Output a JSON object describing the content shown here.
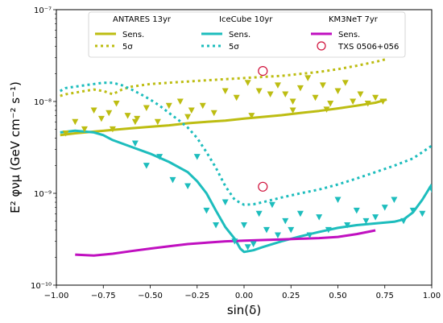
{
  "chart_data": {
    "type": "line",
    "xlabel": "sin(δ)",
    "ylabel": "E² φνμ (GeV cm⁻² s⁻¹)",
    "xlim": [
      -1.0,
      1.0
    ],
    "ylim": [
      1e-10,
      1e-07
    ],
    "yscale": "log",
    "x_ticks": [
      -1.0,
      -0.75,
      -0.5,
      -0.25,
      0.0,
      0.25,
      0.5,
      0.75,
      1.0
    ],
    "x_tick_labels": [
      "−1.00",
      "−0.75",
      "−0.50",
      "−0.25",
      "0.00",
      "0.25",
      "0.50",
      "0.75",
      "1.00"
    ],
    "y_ticks": [
      1e-10,
      1e-09,
      1e-08,
      1e-07
    ],
    "y_tick_labels": [
      "10⁻¹⁰",
      "10⁻⁹",
      "10⁻⁸",
      "10⁻⁷"
    ],
    "grid": false,
    "legend_placement": "top",
    "legend": {
      "groups": [
        {
          "title": "ANTARES 13yr",
          "entries": [
            {
              "label": "Sens.",
              "style": "solid"
            },
            {
              "label": "5σ",
              "style": "dotted"
            }
          ]
        },
        {
          "title": "IceCube 10yr",
          "entries": [
            {
              "label": "Sens.",
              "style": "solid"
            },
            {
              "label": "5σ",
              "style": "dotted"
            }
          ]
        },
        {
          "title": "KM3NeT 7yr",
          "entries": [
            {
              "label": "Sens.",
              "style": "solid"
            },
            {
              "label": "TXS 0506+056",
              "style": "circle"
            }
          ]
        }
      ]
    },
    "colors": {
      "antares": "#bdbd12",
      "icecube": "#1dbdbd",
      "km3net": "#c010c0",
      "txs": "#d0103a"
    },
    "series": [
      {
        "group": "ANTARES 13yr",
        "name": "Sens.",
        "style": "solid",
        "x": [
          -0.98,
          -0.9,
          -0.8,
          -0.7,
          -0.6,
          -0.5,
          -0.4,
          -0.3,
          -0.2,
          -0.1,
          0.0,
          0.1,
          0.2,
          0.3,
          0.4,
          0.5,
          0.6,
          0.7,
          0.76
        ],
        "y": [
          4.3e-09,
          4.5e-09,
          4.7e-09,
          4.9e-09,
          5.1e-09,
          5.3e-09,
          5.5e-09,
          5.8e-09,
          6e-09,
          6.2e-09,
          6.5e-09,
          6.8e-09,
          7.1e-09,
          7.5e-09,
          7.9e-09,
          8.4e-09,
          9e-09,
          9.7e-09,
          1.05e-08
        ]
      },
      {
        "group": "ANTARES 13yr",
        "name": "5σ",
        "style": "dotted",
        "x": [
          -0.98,
          -0.95,
          -0.9,
          -0.85,
          -0.8,
          -0.75,
          -0.7,
          -0.65,
          -0.6,
          -0.5,
          -0.4,
          -0.3,
          -0.2,
          -0.1,
          0.0,
          0.1,
          0.2,
          0.3,
          0.4,
          0.5,
          0.6,
          0.7,
          0.76
        ],
        "y": [
          1.15e-08,
          1.2e-08,
          1.25e-08,
          1.3e-08,
          1.35e-08,
          1.3e-08,
          1.2e-08,
          1.35e-08,
          1.45e-08,
          1.55e-08,
          1.6e-08,
          1.65e-08,
          1.7e-08,
          1.75e-08,
          1.8e-08,
          1.85e-08,
          1.9e-08,
          2e-08,
          2.1e-08,
          2.25e-08,
          2.45e-08,
          2.7e-08,
          2.9e-08
        ]
      },
      {
        "group": "IceCube 10yr",
        "name": "Sens.",
        "style": "solid",
        "x": [
          -0.98,
          -0.9,
          -0.8,
          -0.75,
          -0.7,
          -0.6,
          -0.5,
          -0.4,
          -0.3,
          -0.25,
          -0.2,
          -0.15,
          -0.1,
          -0.05,
          -0.02,
          0.0,
          0.05,
          0.1,
          0.2,
          0.3,
          0.4,
          0.5,
          0.6,
          0.7,
          0.8,
          0.85,
          0.9,
          0.95,
          1.0
        ],
        "y": [
          4.6e-09,
          4.8e-09,
          4.6e-09,
          4.3e-09,
          3.8e-09,
          3.2e-09,
          2.7e-09,
          2.2e-09,
          1.7e-09,
          1.35e-09,
          1e-09,
          6.5e-10,
          4.3e-10,
          3.2e-10,
          2.5e-10,
          2.3e-10,
          2.4e-10,
          2.6e-10,
          3e-10,
          3.4e-10,
          3.8e-10,
          4.2e-10,
          4.5e-10,
          4.7e-10,
          4.9e-10,
          5.2e-10,
          6.2e-10,
          8.5e-10,
          1.25e-09
        ]
      },
      {
        "group": "IceCube 10yr",
        "name": "5σ",
        "style": "dotted",
        "x": [
          -0.98,
          -0.95,
          -0.9,
          -0.85,
          -0.8,
          -0.75,
          -0.7,
          -0.65,
          -0.6,
          -0.55,
          -0.5,
          -0.45,
          -0.4,
          -0.35,
          -0.3,
          -0.25,
          -0.2,
          -0.15,
          -0.1,
          -0.05,
          0.0,
          0.05,
          0.1,
          0.2,
          0.3,
          0.4,
          0.5,
          0.6,
          0.7,
          0.8,
          0.9,
          0.95,
          1.0
        ],
        "y": [
          1.3e-08,
          1.4e-08,
          1.45e-08,
          1.5e-08,
          1.55e-08,
          1.6e-08,
          1.6e-08,
          1.5e-08,
          1.35e-08,
          1.2e-08,
          1.05e-08,
          9e-09,
          7.5e-09,
          6.3e-09,
          5.2e-09,
          4e-09,
          2.8e-09,
          1.9e-09,
          1.2e-09,
          8.5e-10,
          7.5e-10,
          7.6e-10,
          8e-10,
          9e-10,
          1e-09,
          1.1e-09,
          1.25e-09,
          1.45e-09,
          1.7e-09,
          2e-09,
          2.4e-09,
          2.8e-09,
          3.3e-09
        ]
      },
      {
        "group": "KM3NeT 7yr",
        "name": "Sens.",
        "style": "solid",
        "x": [
          -0.9,
          -0.8,
          -0.7,
          -0.6,
          -0.5,
          -0.4,
          -0.3,
          -0.2,
          -0.1,
          0.0,
          0.1,
          0.2,
          0.3,
          0.4,
          0.5,
          0.6,
          0.7
        ],
        "y": [
          2.15e-10,
          2.1e-10,
          2.2e-10,
          2.35e-10,
          2.5e-10,
          2.65e-10,
          2.8e-10,
          2.9e-10,
          3e-10,
          3.05e-10,
          3.1e-10,
          3.15e-10,
          3.2e-10,
          3.25e-10,
          3.35e-10,
          3.6e-10,
          3.95e-10
        ]
      }
    ],
    "upper_limit_markers": [
      {
        "group": "ANTARES 13yr",
        "marker": "down-triangle",
        "x": [
          -0.95,
          -0.9,
          -0.85,
          -0.8,
          -0.76,
          -0.72,
          -0.68,
          -0.62,
          -0.57,
          -0.52,
          -0.46,
          -0.4,
          -0.34,
          -0.28,
          -0.22,
          -0.16,
          -0.1,
          -0.04,
          0.02,
          0.08,
          0.14,
          0.18,
          0.22,
          0.26,
          0.3,
          0.34,
          0.38,
          0.42,
          0.46,
          0.5,
          0.54,
          0.58,
          0.62,
          0.66,
          0.7,
          0.74,
          -0.7,
          -0.58,
          -0.3,
          0.04,
          0.26,
          0.44
        ],
        "y": [
          4.5e-09,
          6e-09,
          5e-09,
          8e-09,
          6.5e-09,
          7.5e-09,
          9.5e-09,
          7e-09,
          6.5e-09,
          8.5e-09,
          6e-09,
          9e-09,
          1e-08,
          8e-09,
          9e-09,
          7.5e-09,
          1.3e-08,
          1.1e-08,
          1.6e-08,
          1.3e-08,
          1.2e-08,
          1.5e-08,
          1.2e-08,
          1e-08,
          1.4e-08,
          1.8e-08,
          1.1e-08,
          1.5e-08,
          9.5e-09,
          1.3e-08,
          1.6e-08,
          1e-08,
          1.2e-08,
          9.5e-09,
          1.1e-08,
          1e-08,
          5e-09,
          6e-09,
          6.8e-09,
          7e-09,
          8e-09,
          8.2e-09
        ]
      },
      {
        "group": "IceCube 10yr",
        "marker": "down-triangle",
        "x": [
          -0.58,
          -0.52,
          -0.45,
          -0.38,
          -0.3,
          -0.25,
          -0.2,
          -0.15,
          -0.1,
          -0.05,
          0.0,
          0.02,
          0.05,
          0.08,
          0.12,
          0.15,
          0.18,
          0.22,
          0.25,
          0.3,
          0.35,
          0.4,
          0.45,
          0.5,
          0.55,
          0.6,
          0.65,
          0.7,
          0.75,
          0.8,
          0.85,
          0.9,
          0.95,
          1.0
        ],
        "y": [
          3.5e-09,
          2e-09,
          2.5e-09,
          1.4e-09,
          1.2e-09,
          2.5e-09,
          6.5e-10,
          4.5e-10,
          8e-10,
          3e-10,
          4.5e-10,
          2.6e-10,
          2.8e-10,
          6e-10,
          4e-10,
          7.5e-10,
          3.5e-10,
          5e-10,
          4e-10,
          6e-10,
          3.5e-10,
          5.5e-10,
          4e-10,
          8.5e-10,
          4.5e-10,
          6.5e-10,
          5e-10,
          5.5e-10,
          7e-10,
          8.5e-10,
          5e-10,
          6.5e-10,
          6e-10,
          1.1e-09
        ]
      }
    ],
    "annotations": [
      {
        "label": "TXS 0506+056",
        "x": 0.1,
        "y": 2.15e-08
      },
      {
        "label": "TXS 0506+056",
        "x": 0.1,
        "y": 1.18e-09
      }
    ]
  }
}
